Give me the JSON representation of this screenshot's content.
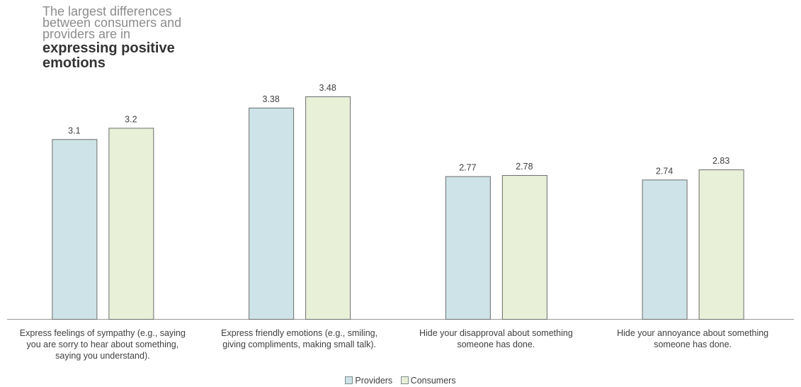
{
  "title": {
    "light": "The largest differences\nbetween consumers and\nproviders are in",
    "bold": "expressing positive\nemotions"
  },
  "colors": {
    "providers_fill": "#cde3e7",
    "consumers_fill": "#e8f0d8",
    "bar_stroke": "#6d6d6d",
    "axis": "#999999"
  },
  "chart_data": {
    "type": "bar",
    "categories": [
      "Express feelings of sympathy (e.g., saying\nyou are sorry to hear about something,\nsaying you understand).",
      "Express friendly emotions (e.g., smiling,\ngiving compliments, making small talk).",
      "Hide your disapproval about something\nsomeone has done.",
      "Hide your annoyance about something\nsomeone has done."
    ],
    "series": [
      {
        "name": "Providers",
        "values": [
          3.1,
          3.38,
          2.77,
          2.74
        ],
        "labels": [
          "3.1",
          "3.38",
          "2.77",
          "2.74"
        ]
      },
      {
        "name": "Consumers",
        "values": [
          3.2,
          3.48,
          2.78,
          2.83
        ],
        "labels": [
          "3.2",
          "3.48",
          "2.78",
          "2.83"
        ]
      }
    ],
    "ylim": [
      1.5,
      3.6
    ],
    "grid": false,
    "legend_position": "bottom-center"
  }
}
